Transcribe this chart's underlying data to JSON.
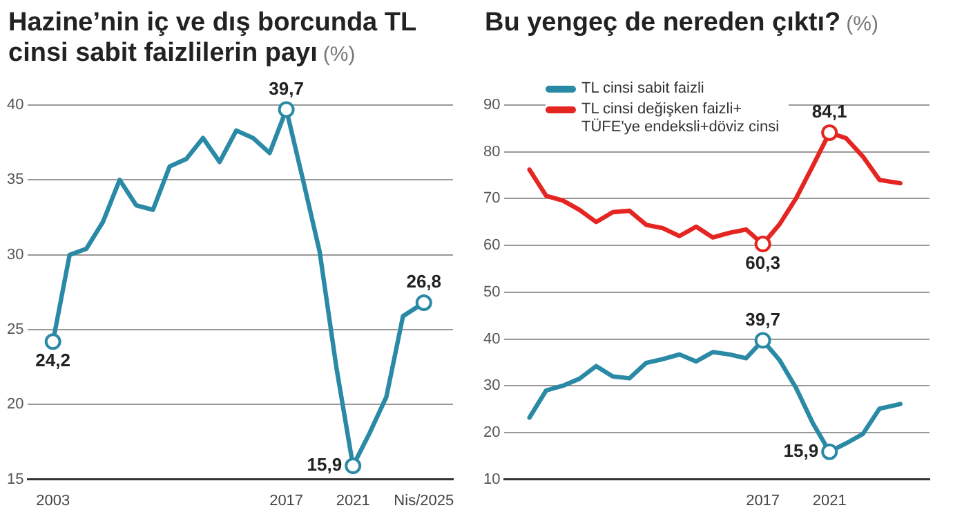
{
  "chart_data": [
    {
      "type": "line",
      "title": "Hazine’nin iç ve dış borcunda TL cinsi sabit faizlilerin payı",
      "ylabel": "(%)",
      "x": [
        2003,
        2004,
        2005,
        2006,
        2007,
        2008,
        2009,
        2010,
        2011,
        2012,
        2013,
        2014,
        2015,
        2016,
        2017,
        2018,
        2019,
        2020,
        2021,
        2022,
        2023,
        2024,
        2025.25
      ],
      "series": [
        {
          "color": "#2a8aa6",
          "values": [
            24.2,
            30.0,
            30.4,
            32.2,
            35.0,
            33.3,
            33.0,
            35.9,
            36.4,
            37.8,
            36.2,
            38.3,
            37.8,
            36.8,
            39.7,
            35.0,
            30.2,
            22.5,
            15.9,
            18.1,
            20.5,
            25.9,
            26.8
          ]
        }
      ],
      "xlim": [
        2001.5,
        2027
      ],
      "xticks": [
        2003,
        2017,
        2021,
        {
          "value": 2025.25,
          "label": "Nis/2025"
        }
      ],
      "ylim": [
        15,
        40
      ],
      "yticks": [
        15,
        20,
        25,
        30,
        35,
        40
      ],
      "grid": "y",
      "legend": false,
      "annotations": [
        {
          "text": "24,2",
          "x": 2003,
          "y": 24.2
        },
        {
          "text": "39,7",
          "x": 2017,
          "y": 39.7
        },
        {
          "text": "15,9",
          "x": 2021,
          "y": 15.9
        },
        {
          "text": "26,8",
          "x": 2025.25,
          "y": 26.8
        }
      ]
    },
    {
      "type": "line",
      "title": "Bu yengeç de nereden çıktı?",
      "ylabel": "(%)",
      "x": [
        2003,
        2004,
        2005,
        2006,
        2007,
        2008,
        2009,
        2010,
        2011,
        2012,
        2013,
        2014,
        2015,
        2016,
        2017,
        2018,
        2019,
        2020,
        2021,
        2022,
        2023,
        2024,
        2025.25
      ],
      "series": [
        {
          "name": "TL cinsi sabit faizli",
          "color": "#2a8aa6",
          "values": [
            23.2,
            29.0,
            30.0,
            31.5,
            34.2,
            32.0,
            31.6,
            34.9,
            35.7,
            36.7,
            35.2,
            37.2,
            36.7,
            35.9,
            39.7,
            35.5,
            29.5,
            22.0,
            15.9,
            17.7,
            19.7,
            25.1,
            26.1
          ]
        },
        {
          "name": "TL cinsi değişken faizli+ TÜFE'ye endeksli+döviz cinsi",
          "color": "#e52521",
          "values": [
            76.2,
            70.6,
            69.6,
            67.6,
            65.0,
            67.1,
            67.4,
            64.4,
            63.7,
            62.0,
            64.0,
            61.7,
            62.7,
            63.4,
            60.3,
            64.5,
            70.1,
            77.0,
            84.1,
            82.9,
            79.0,
            74.0,
            73.3
          ]
        }
      ],
      "xlim": [
        2001.5,
        2027
      ],
      "xticks": [
        {
          "value": 2017,
          "label": "2017"
        },
        {
          "value": 2021,
          "label": "2021"
        }
      ],
      "ylim": [
        10,
        90
      ],
      "yticks": [
        10,
        20,
        30,
        40,
        50,
        60,
        70,
        80,
        90
      ],
      "grid": "y",
      "legend": "top left",
      "annotations": [
        {
          "text": "60,3",
          "x": 2017,
          "y": 60.3
        },
        {
          "text": "84,1",
          "x": 2021,
          "y": 84.1
        },
        {
          "text": "39,7",
          "x": 2017,
          "y": 39.7
        },
        {
          "text": "15,9",
          "x": 2021,
          "y": 15.9
        }
      ]
    }
  ]
}
